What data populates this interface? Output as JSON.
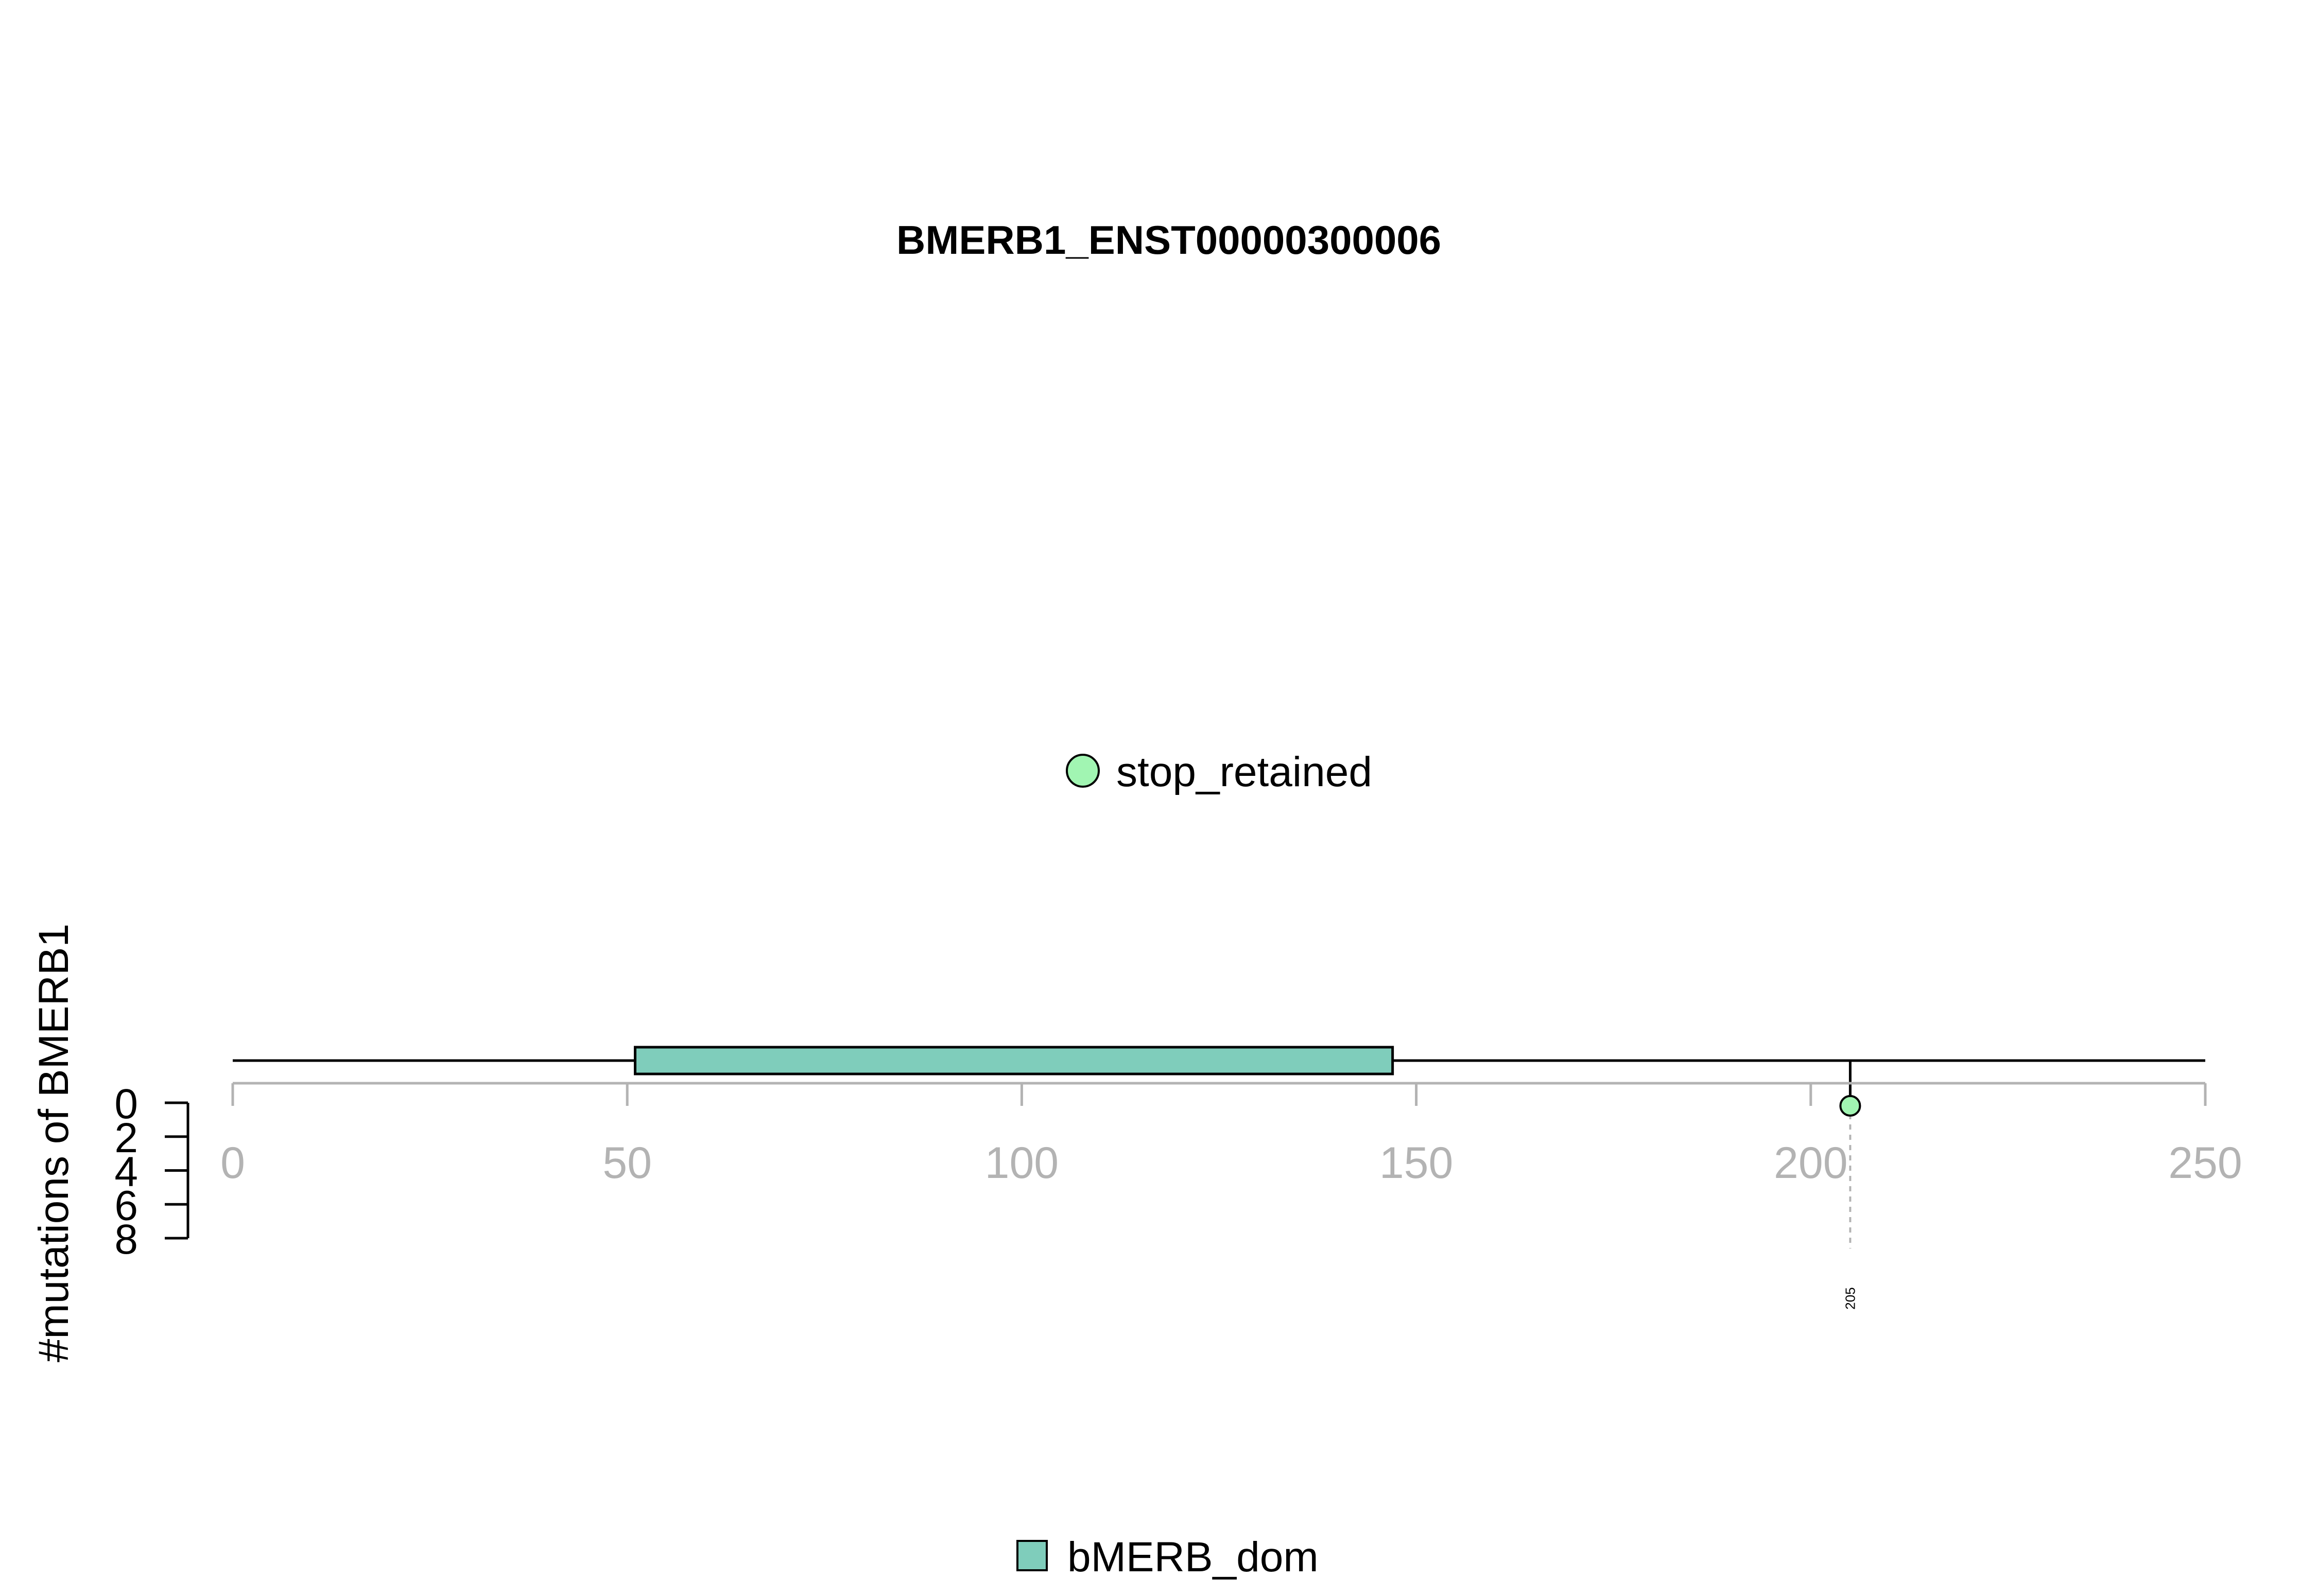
{
  "chart_data": {
    "type": "lollipop",
    "title": "BMERB1_ENST00000300006",
    "ylabel": "#mutations of BMERB1",
    "protein_length": 250,
    "x_ticks": [
      "0",
      "50",
      "100",
      "150",
      "200",
      "250"
    ],
    "y_ticks": [
      "0",
      "2",
      "4",
      "6",
      "8"
    ],
    "xlim": [
      0,
      250
    ],
    "ylim": [
      0,
      8
    ],
    "domains": [
      {
        "name": "bMERB_dom",
        "start": 51,
        "end": 147,
        "color": "#7fcdbb"
      }
    ],
    "mutations": [
      {
        "position": 205,
        "label": "205",
        "type": "stop_retained",
        "count": 1,
        "color": "#a1f5b2"
      }
    ],
    "mutation_legend": [
      {
        "label": "stop_retained",
        "color": "#a1f5b2"
      }
    ],
    "domain_legend": [
      {
        "label": "bMERB_dom",
        "color": "#7fcdbb"
      }
    ],
    "colors": {
      "backbone": "#000000",
      "axis": "#b3b3b3",
      "guide": "#b3b3b3"
    }
  }
}
